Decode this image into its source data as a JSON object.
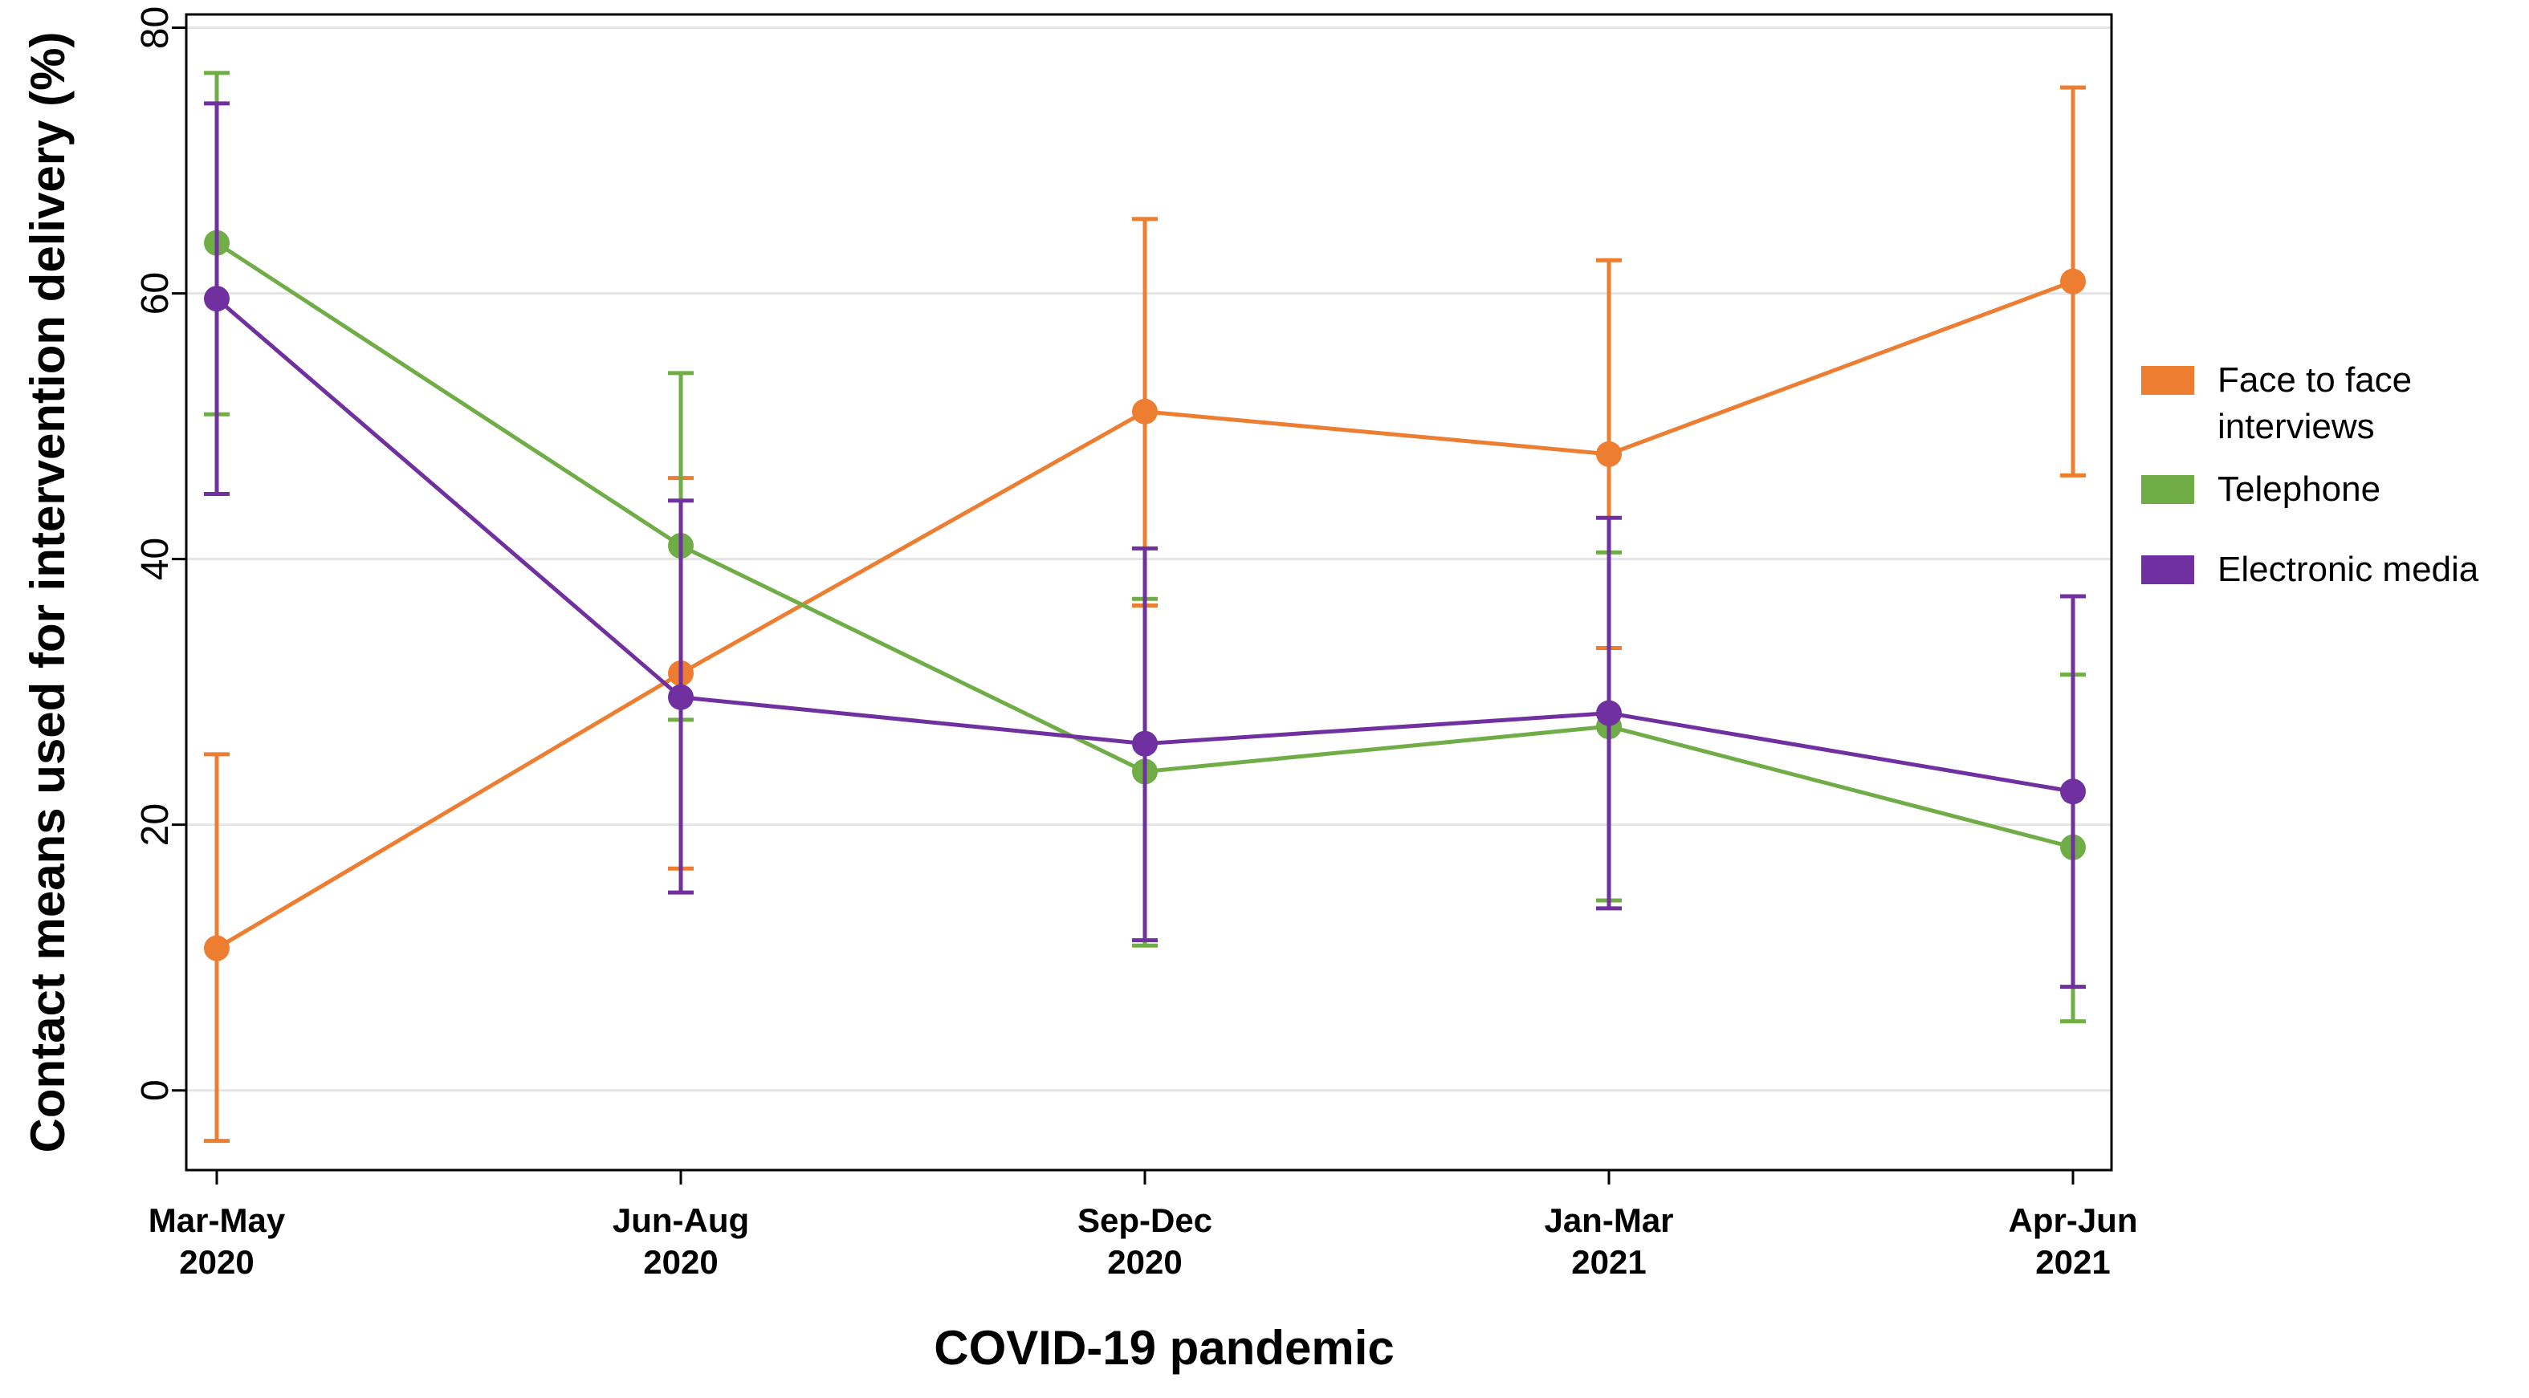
{
  "chart_data": {
    "type": "line",
    "title": "",
    "xlabel": "COVID-19 pandemic",
    "ylabel": "Contact means used for intervention delivery (%)",
    "categories": [
      [
        "Mar-May",
        "2020"
      ],
      [
        "Jun-Aug",
        "2020"
      ],
      [
        "Sep-Dec",
        "2020"
      ],
      [
        "Jan-Mar",
        "2021"
      ],
      [
        "Apr-Jun",
        "2021"
      ]
    ],
    "ylim": [
      -6,
      81
    ],
    "yticks": [
      0,
      20,
      40,
      60,
      80
    ],
    "grid": true,
    "legend_position": "right",
    "series": [
      {
        "name": "Face to face\ninterviews",
        "legend_lines": [
          "Face to face",
          "interviews"
        ],
        "color": "#ED7D31",
        "values": [
          10.7,
          31.4,
          51.1,
          47.9,
          60.9
        ],
        "lower": [
          -3.8,
          16.7,
          36.5,
          33.3,
          46.3
        ],
        "upper": [
          25.3,
          46.1,
          65.6,
          62.5,
          75.5
        ]
      },
      {
        "name": "Telephone",
        "legend_lines": [
          "Telephone"
        ],
        "color": "#70AD47",
        "values": [
          63.8,
          41.0,
          24.0,
          27.4,
          18.3
        ],
        "lower": [
          50.9,
          27.9,
          10.9,
          14.3,
          5.2
        ],
        "upper": [
          76.6,
          54.0,
          37.0,
          40.5,
          31.3
        ]
      },
      {
        "name": "Electronic media",
        "legend_lines": [
          "Electronic media"
        ],
        "color": "#7030A0",
        "values": [
          59.6,
          29.6,
          26.1,
          28.4,
          22.5
        ],
        "lower": [
          44.9,
          14.9,
          11.3,
          13.7,
          7.8
        ],
        "upper": [
          74.3,
          44.4,
          40.8,
          43.1,
          37.2
        ]
      }
    ]
  }
}
